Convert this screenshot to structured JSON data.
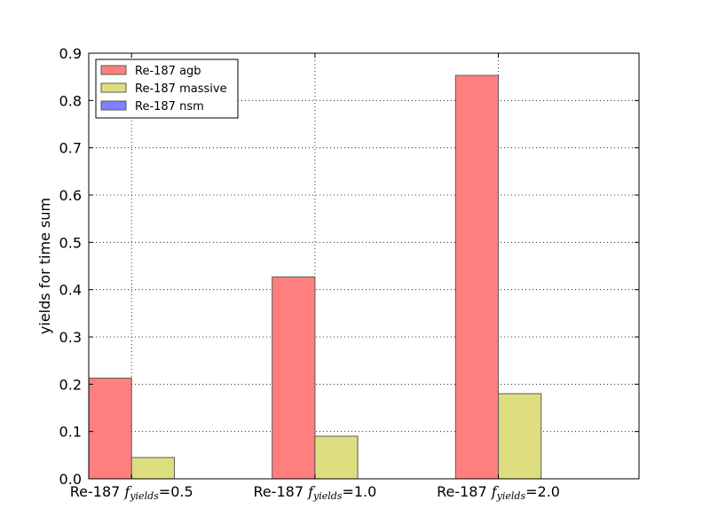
{
  "chart_data": {
    "type": "bar",
    "categories": [
      {
        "prefix": "Re-187 ",
        "symbol": "f",
        "subscript": "yields",
        "suffix": "=0.5"
      },
      {
        "prefix": "Re-187 ",
        "symbol": "f",
        "subscript": "yields",
        "suffix": "=1.0"
      },
      {
        "prefix": "Re-187 ",
        "symbol": "f",
        "subscript": "yields",
        "suffix": "=2.0"
      }
    ],
    "series": [
      {
        "name": "Re-187 agb",
        "values": [
          0.213,
          0.427,
          0.853
        ],
        "color": "#ff7f7f"
      },
      {
        "name": "Re-187 massive",
        "values": [
          0.045,
          0.09,
          0.18
        ],
        "color": "#dede80"
      },
      {
        "name": "Re-187 nsm",
        "values": [
          0.0,
          0.0,
          0.0
        ],
        "color": "#7f7fff"
      }
    ],
    "title": "",
    "xlabel": "",
    "ylabel": "yields for time sum",
    "ylim": [
      0,
      0.9
    ],
    "yticks": [
      "0.0",
      "0.1",
      "0.2",
      "0.3",
      "0.4",
      "0.5",
      "0.6",
      "0.7",
      "0.8",
      "0.9"
    ],
    "grid": true,
    "legend_position": "top-left"
  }
}
